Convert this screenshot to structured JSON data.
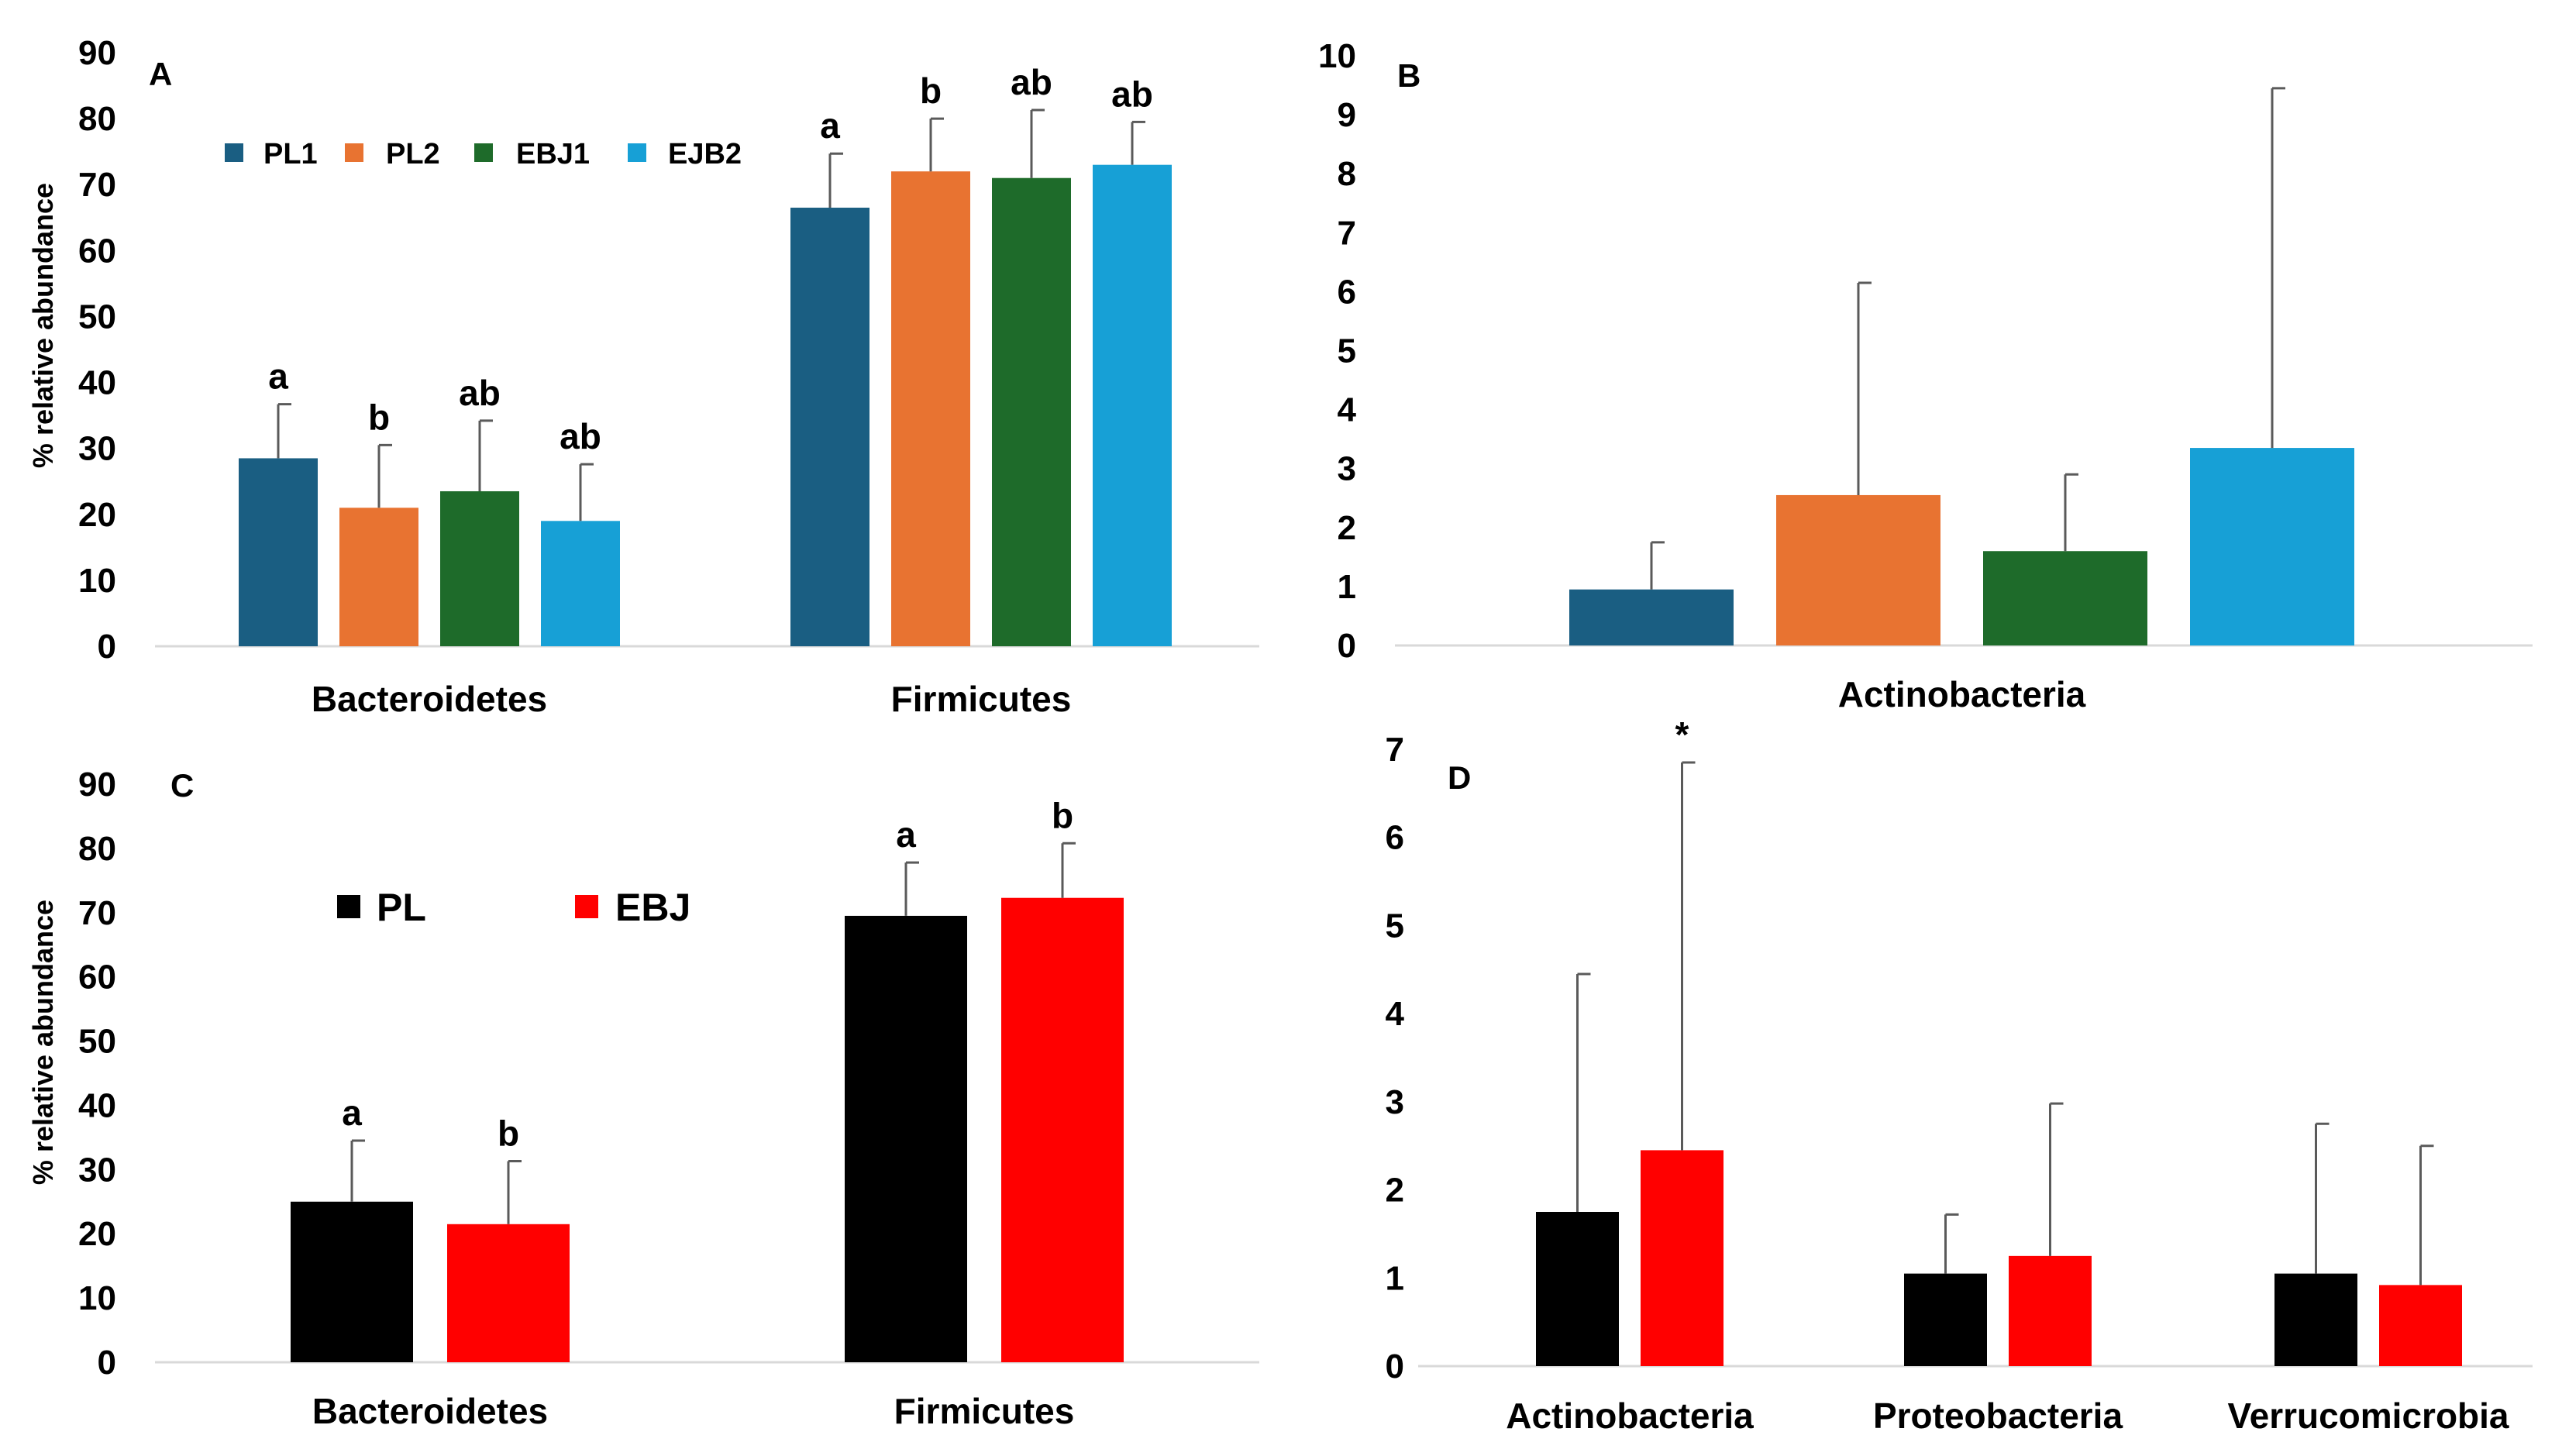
{
  "chart_data": [
    {
      "panel": "A",
      "type": "bar",
      "ylabel": "% relative abundance",
      "ylim": [
        0,
        90
      ],
      "yticks": [
        "0",
        "10",
        "20",
        "30",
        "40",
        "50",
        "60",
        "70",
        "80",
        "90"
      ],
      "categories": [
        "Bacteroidetes",
        "Firmicutes"
      ],
      "legend_position": "top-left",
      "series": [
        {
          "name": "PL1",
          "color": "#1a5e82",
          "values": [
            28.5,
            66.5
          ],
          "errors": [
            8.2,
            8.2
          ],
          "sig": [
            "a",
            "a"
          ]
        },
        {
          "name": "PL2",
          "color": "#e87331",
          "values": [
            21,
            72
          ],
          "errors": [
            9.5,
            8
          ],
          "sig": [
            "b",
            "b"
          ]
        },
        {
          "name": "EBJ1",
          "color": "#1e6b2a",
          "values": [
            23.5,
            71
          ],
          "errors": [
            10.7,
            10.3
          ],
          "sig": [
            "ab",
            "ab"
          ]
        },
        {
          "name": "EJB2",
          "color": "#17a0d6",
          "values": [
            19,
            73
          ],
          "errors": [
            8.6,
            6.5
          ],
          "sig": [
            "ab",
            "ab"
          ]
        }
      ]
    },
    {
      "panel": "B",
      "type": "bar",
      "ylim": [
        0,
        10
      ],
      "yticks": [
        "0",
        "1",
        "2",
        "3",
        "4",
        "5",
        "6",
        "7",
        "8",
        "9",
        "10"
      ],
      "categories": [
        "Actinobacteria"
      ],
      "series": [
        {
          "name": "PL1",
          "color": "#1a5e82",
          "values": [
            0.95
          ],
          "errors": [
            0.8
          ]
        },
        {
          "name": "PL2",
          "color": "#e87331",
          "values": [
            2.55
          ],
          "errors": [
            3.6
          ]
        },
        {
          "name": "EBJ1",
          "color": "#1e6b2a",
          "values": [
            1.6
          ],
          "errors": [
            1.3
          ]
        },
        {
          "name": "EJB2",
          "color": "#17a0d6",
          "values": [
            3.35
          ],
          "errors": [
            6.1
          ]
        }
      ]
    },
    {
      "panel": "C",
      "type": "bar",
      "ylabel": "% relative abundance",
      "ylim": [
        0,
        90
      ],
      "yticks": [
        "0",
        "10",
        "20",
        "30",
        "40",
        "50",
        "60",
        "70",
        "80",
        "90"
      ],
      "categories": [
        "Bacteroidetes",
        "Firmicutes"
      ],
      "legend_position": "top-left",
      "series": [
        {
          "name": "PL",
          "color": "#000000",
          "values": [
            25,
            69.5
          ],
          "errors": [
            9.5,
            8.3
          ],
          "sig": [
            "a",
            "a"
          ]
        },
        {
          "name": "EBJ",
          "color": "#ff0000",
          "values": [
            21.5,
            72.3
          ],
          "errors": [
            9.8,
            8.5
          ],
          "sig": [
            "b",
            "b"
          ]
        }
      ]
    },
    {
      "panel": "D",
      "type": "bar",
      "ylim": [
        0,
        7
      ],
      "yticks": [
        "0",
        "1",
        "2",
        "3",
        "4",
        "5",
        "6",
        "7"
      ],
      "categories": [
        "Actinobacteria",
        "Proteobacteria",
        "Verrucomicrobia"
      ],
      "series": [
        {
          "name": "PL",
          "color": "#000000",
          "values": [
            1.75,
            1.05,
            1.05
          ],
          "errors": [
            2.7,
            0.67,
            1.7
          ],
          "sig": [
            "",
            "",
            ""
          ]
        },
        {
          "name": "EBJ",
          "color": "#ff0000",
          "values": [
            2.45,
            1.25,
            0.92
          ],
          "errors": [
            4.4,
            1.73,
            1.58
          ],
          "sig": [
            "*",
            "",
            ""
          ]
        }
      ]
    }
  ]
}
